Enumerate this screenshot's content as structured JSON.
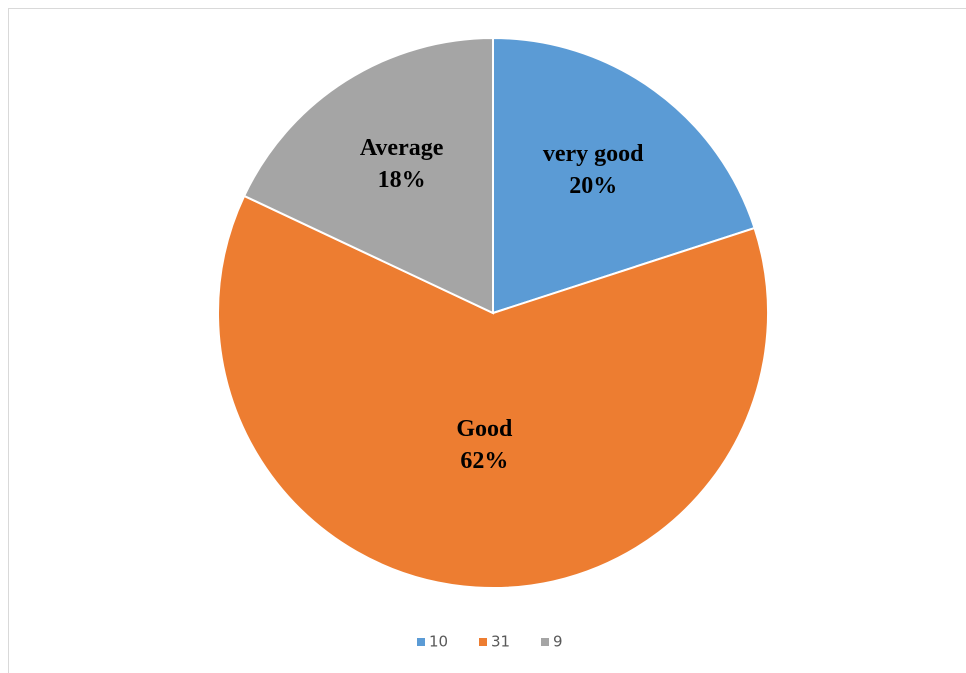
{
  "chart_data": {
    "type": "pie",
    "categories": [
      "10",
      "31",
      "9"
    ],
    "labels": [
      "very good",
      "Good",
      "Average"
    ],
    "values": [
      20,
      62,
      18
    ],
    "value_labels": [
      "20%",
      "62%",
      "18%"
    ],
    "colors": [
      "#5b9bd5",
      "#ed7d31",
      "#a5a5a5"
    ],
    "legend": "bottom"
  }
}
